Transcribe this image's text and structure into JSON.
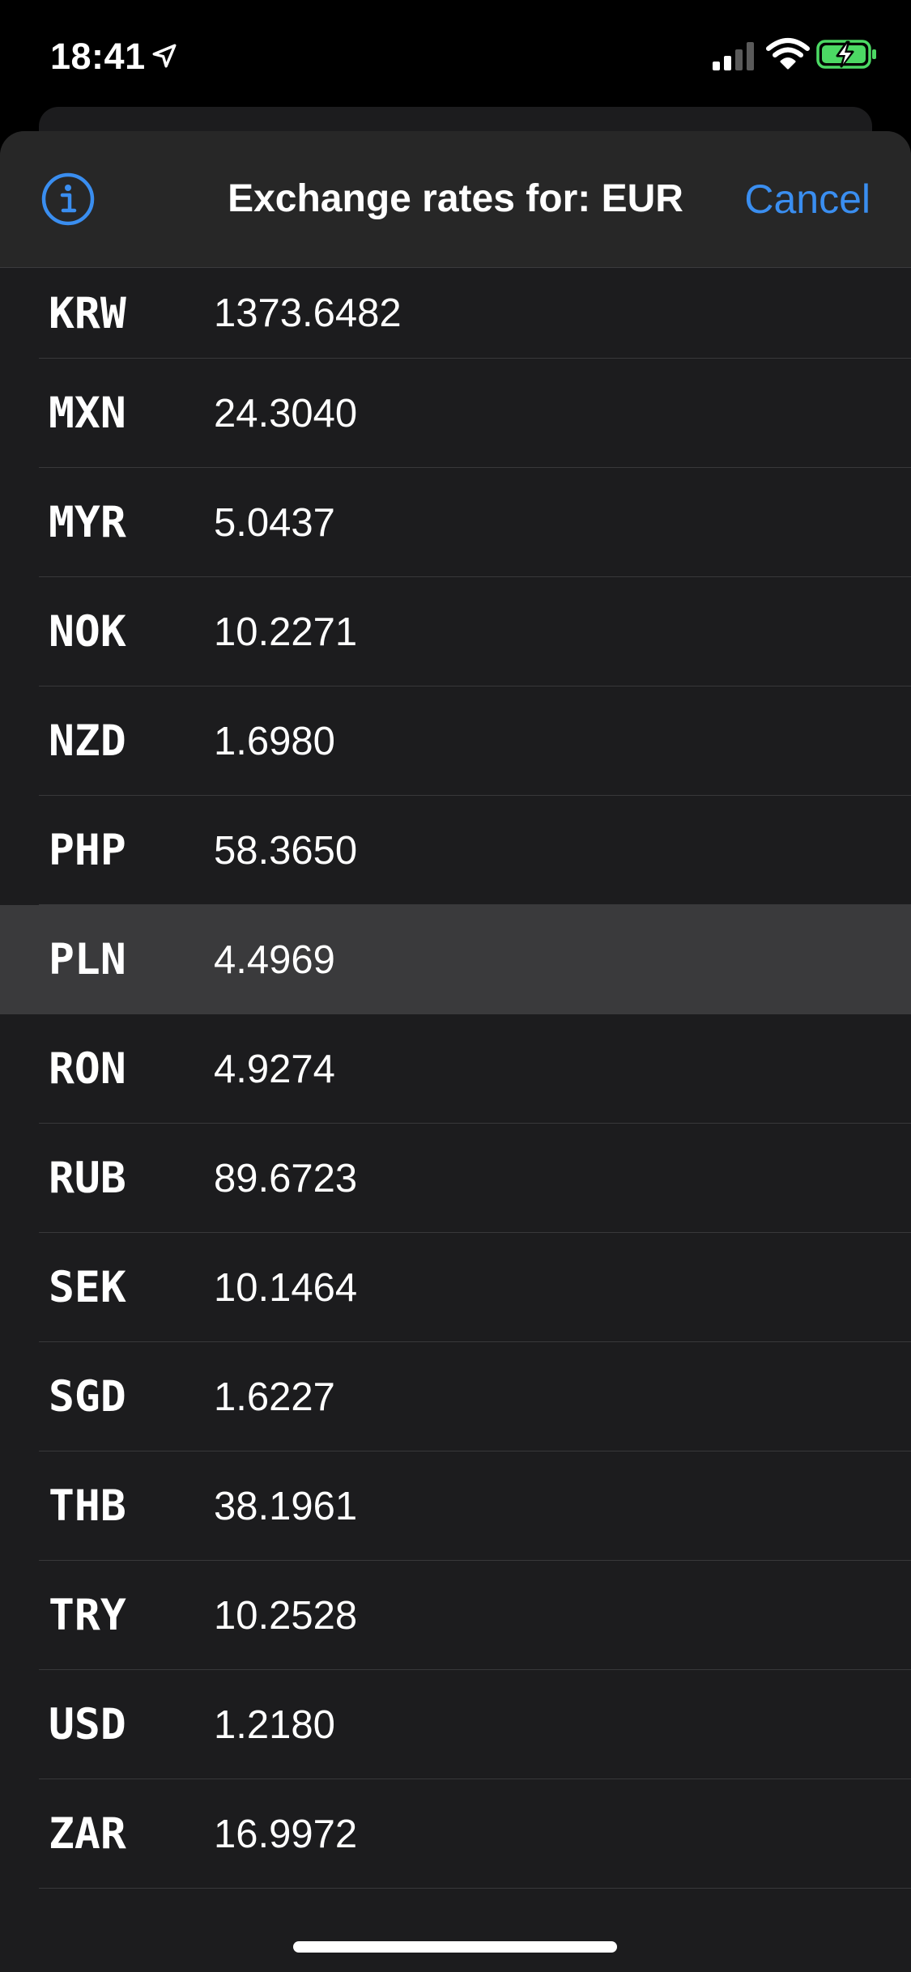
{
  "status_bar": {
    "time": "18:41",
    "location_icon": "location-arrow-icon",
    "signal_icon": "cellular-signal-icon",
    "wifi_icon": "wifi-icon",
    "battery_icon": "battery-charging-icon"
  },
  "nav": {
    "title": "Exchange rates for: EUR",
    "info_icon": "info-circle-icon",
    "cancel_label": "Cancel"
  },
  "colors": {
    "accent": "#3a8ef0",
    "sheet_background": "#1c1c1e",
    "nav_background": "#272727",
    "highlight_row": "#3a3a3c",
    "battery_fill": "#4cd964"
  },
  "rates": [
    {
      "code": "KRW",
      "value": "1373.6482"
    },
    {
      "code": "MXN",
      "value": "24.3040"
    },
    {
      "code": "MYR",
      "value": "5.0437"
    },
    {
      "code": "NOK",
      "value": "10.2271"
    },
    {
      "code": "NZD",
      "value": "1.6980"
    },
    {
      "code": "PHP",
      "value": "58.3650"
    },
    {
      "code": "PLN",
      "value": "4.4969",
      "highlighted": true
    },
    {
      "code": "RON",
      "value": "4.9274"
    },
    {
      "code": "RUB",
      "value": "89.6723"
    },
    {
      "code": "SEK",
      "value": "10.1464"
    },
    {
      "code": "SGD",
      "value": "1.6227"
    },
    {
      "code": "THB",
      "value": "38.1961"
    },
    {
      "code": "TRY",
      "value": "10.2528"
    },
    {
      "code": "USD",
      "value": "1.2180"
    },
    {
      "code": "ZAR",
      "value": "16.9972"
    }
  ]
}
